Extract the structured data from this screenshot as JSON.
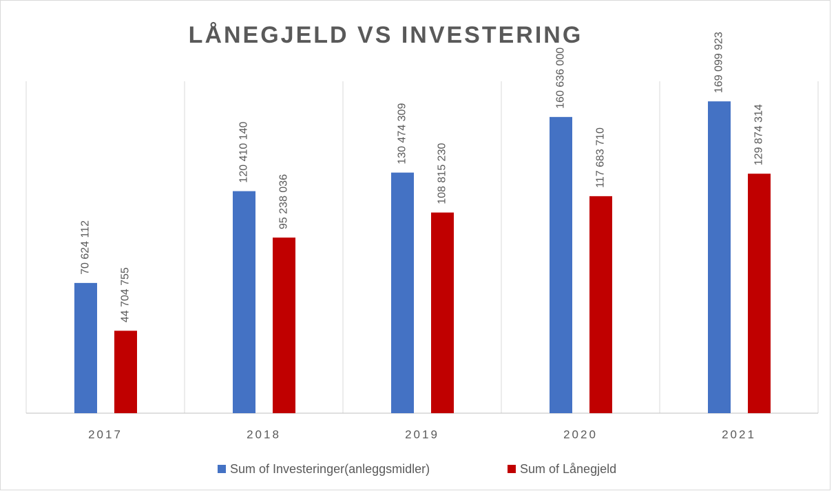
{
  "chart_data": {
    "type": "bar",
    "title": "LÅNEGJELD VS INVESTERING",
    "categories": [
      "2017",
      "2018",
      "2019",
      "2020",
      "2021"
    ],
    "series": [
      {
        "name": "Sum of Investeringer(anleggsmidler)",
        "color": "#4472c4",
        "values": [
          70624112,
          120410140,
          130474309,
          160636000,
          169099923
        ],
        "value_labels": [
          "70 624 112",
          "120 410 140",
          "130 474 309",
          "160 636 000",
          "169 099 923"
        ]
      },
      {
        "name": "Sum of Lånegjeld",
        "color": "#c00000",
        "values": [
          44704755,
          95238036,
          108815230,
          117683710,
          129874314
        ],
        "value_labels": [
          "44 704 755",
          "95 238 036",
          "108 815 230",
          "117 683 710",
          "129 874 314"
        ]
      }
    ],
    "ylim": [
      0,
      180000000
    ],
    "legend": "bottom"
  }
}
